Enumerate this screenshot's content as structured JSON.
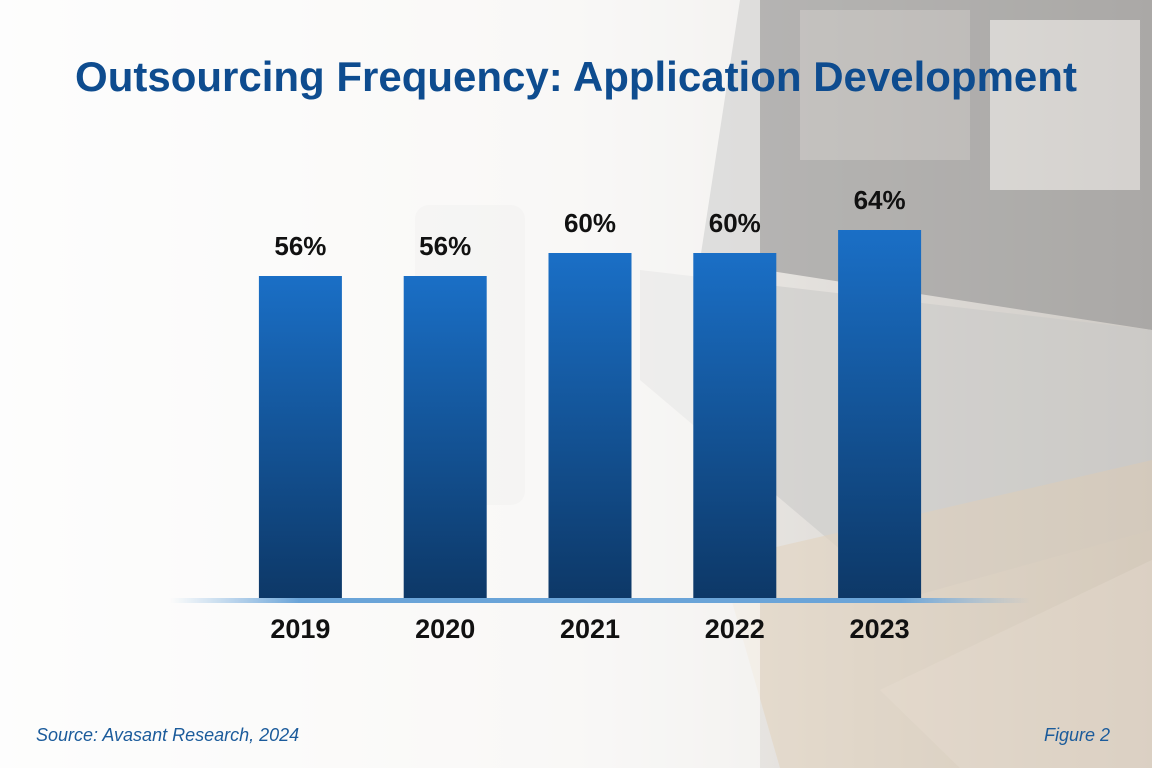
{
  "chart_data": {
    "type": "bar",
    "title": "Outsourcing Frequency: Application Development",
    "categories": [
      "2019",
      "2020",
      "2021",
      "2022",
      "2023"
    ],
    "values": [
      56,
      56,
      60,
      60,
      64
    ],
    "value_labels": [
      "56%",
      "56%",
      "60%",
      "60%",
      "64%"
    ],
    "color": "#1565b8",
    "source": "Source: Avasant Research, 2024",
    "figure_label": "Figure 2"
  }
}
